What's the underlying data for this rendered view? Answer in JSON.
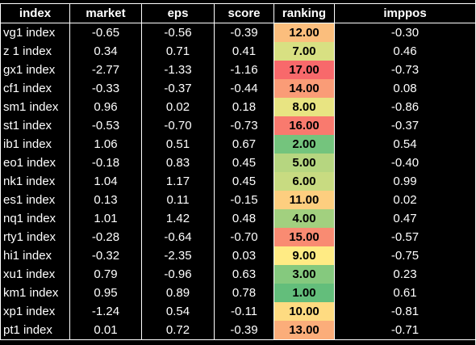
{
  "headers": [
    "index",
    "market",
    "eps",
    "score",
    "ranking",
    "imppos"
  ],
  "rows": [
    {
      "index": "vg1 index",
      "market": "-0.65",
      "eps": "-0.56",
      "score": "-0.39",
      "ranking": "12.00",
      "ranking_color": "#FBBE7D",
      "imppos": "-0.30"
    },
    {
      "index": "z 1 index",
      "market": "0.34",
      "eps": "0.71",
      "score": "0.41",
      "ranking": "7.00",
      "ranking_color": "#D8E082",
      "imppos": "0.46"
    },
    {
      "index": "gx1 index",
      "market": "-2.77",
      "eps": "-1.33",
      "score": "-1.16",
      "ranking": "17.00",
      "ranking_color": "#F8696B",
      "imppos": "-0.73"
    },
    {
      "index": "cf1 index",
      "market": "-0.33",
      "eps": "-0.37",
      "score": "-0.44",
      "ranking": "14.00",
      "ranking_color": "#FA9C77",
      "imppos": "0.08"
    },
    {
      "index": "sm1 index",
      "market": "0.96",
      "eps": "0.02",
      "score": "0.18",
      "ranking": "8.00",
      "ranking_color": "#E8E482",
      "imppos": "-0.86"
    },
    {
      "index": "st1 index",
      "market": "-0.53",
      "eps": "-0.70",
      "score": "-0.73",
      "ranking": "16.00",
      "ranking_color": "#F97A6E",
      "imppos": "-0.37"
    },
    {
      "index": "ib1 index",
      "market": "1.06",
      "eps": "0.51",
      "score": "0.67",
      "ranking": "2.00",
      "ranking_color": "#74C47D",
      "imppos": "0.54"
    },
    {
      "index": "eo1 index",
      "market": "-0.18",
      "eps": "0.83",
      "score": "0.45",
      "ranking": "5.00",
      "ranking_color": "#B6D680",
      "imppos": "-0.40"
    },
    {
      "index": "nk1 index",
      "market": "1.04",
      "eps": "1.17",
      "score": "0.45",
      "ranking": "6.00",
      "ranking_color": "#C8DB81",
      "imppos": "0.99"
    },
    {
      "index": "es1 index",
      "market": "0.13",
      "eps": "0.11",
      "score": "-0.15",
      "ranking": "11.00",
      "ranking_color": "#FDCE7F",
      "imppos": "0.02"
    },
    {
      "index": "nq1 index",
      "market": "1.01",
      "eps": "1.42",
      "score": "0.48",
      "ranking": "4.00",
      "ranking_color": "#A2D07F",
      "imppos": "0.47"
    },
    {
      "index": "rty1 index",
      "market": "-0.28",
      "eps": "-0.64",
      "score": "-0.70",
      "ranking": "15.00",
      "ranking_color": "#F98B72",
      "imppos": "-0.57"
    },
    {
      "index": "hi1 index",
      "market": "-0.32",
      "eps": "-2.35",
      "score": "0.03",
      "ranking": "9.00",
      "ranking_color": "#FFEB84",
      "imppos": "-0.75"
    },
    {
      "index": "xu1 index",
      "market": "0.79",
      "eps": "-0.96",
      "score": "0.63",
      "ranking": "3.00",
      "ranking_color": "#85C97E",
      "imppos": "0.23"
    },
    {
      "index": "km1 index",
      "market": "0.95",
      "eps": "0.89",
      "score": "0.78",
      "ranking": "1.00",
      "ranking_color": "#63BE7B",
      "imppos": "0.61"
    },
    {
      "index": "xp1 index",
      "market": "-1.24",
      "eps": "0.54",
      "score": "-0.11",
      "ranking": "10.00",
      "ranking_color": "#FEDB81",
      "imppos": "-0.81"
    },
    {
      "index": "pt1 index",
      "market": "0.01",
      "eps": "0.72",
      "score": "-0.39",
      "ranking": "13.00",
      "ranking_color": "#FBAD7A",
      "imppos": "-0.71"
    }
  ]
}
